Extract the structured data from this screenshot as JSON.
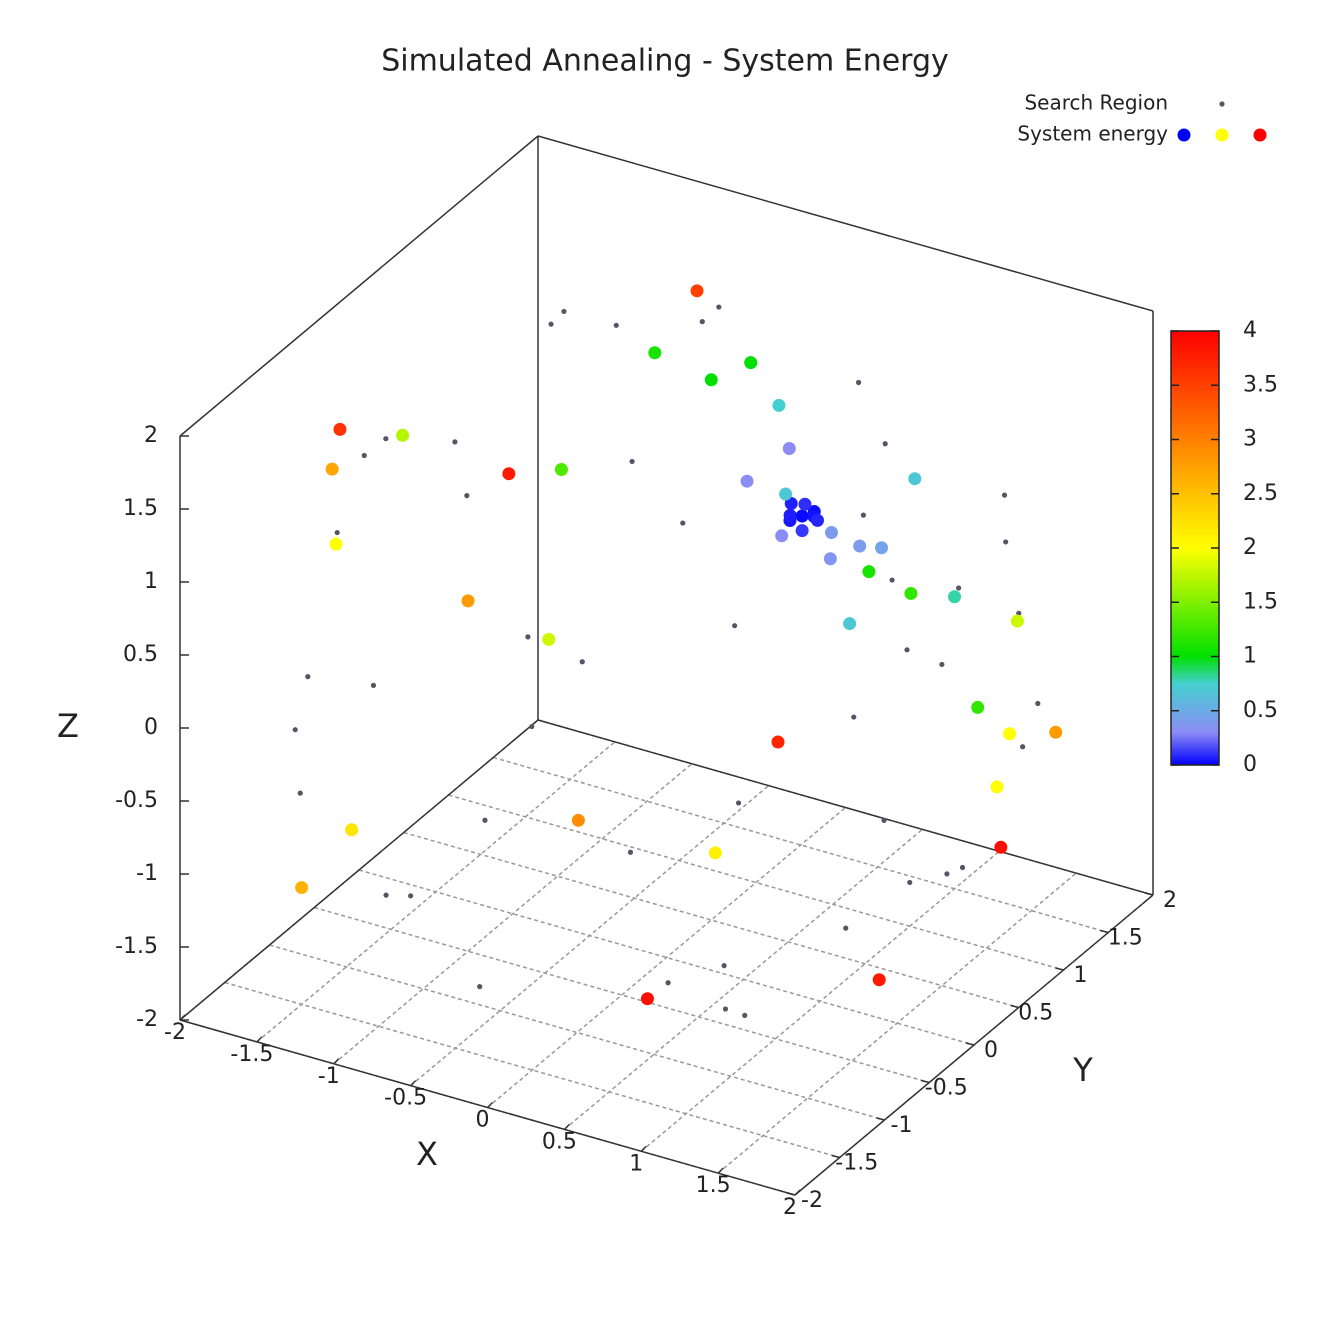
{
  "chart_data": {
    "type": "scatter3d",
    "title": "Simulated Annealing - System Energy",
    "xlabel": "X",
    "ylabel": "Y",
    "zlabel": "Z",
    "xlim": [
      -2,
      2
    ],
    "ylim": [
      -2,
      2
    ],
    "zlim": [
      -2,
      2
    ],
    "xticks": [
      -2,
      -1.5,
      -1,
      -0.5,
      0,
      0.5,
      1,
      1.5,
      2
    ],
    "yticks": [
      -2,
      -1.5,
      -1,
      -0.5,
      0,
      0.5,
      1,
      1.5,
      2
    ],
    "zticks": [
      -2,
      -1.5,
      -1,
      -0.5,
      0,
      0.5,
      1,
      1.5,
      2
    ],
    "cblim": [
      0,
      4
    ],
    "cbticks": [
      0,
      0.5,
      1,
      1.5,
      2,
      2.5,
      3,
      3.5,
      4
    ],
    "palette": [
      {
        "value": 0,
        "color": "#0000ff"
      },
      {
        "value": 0.3,
        "color": "#8c8cf5"
      },
      {
        "value": 0.75,
        "color": "#44d0d0"
      },
      {
        "value": 1,
        "color": "#00e000"
      },
      {
        "value": 1.5,
        "color": "#80f000"
      },
      {
        "value": 2,
        "color": "#ffff00"
      },
      {
        "value": 2.5,
        "color": "#ffc000"
      },
      {
        "value": 3,
        "color": "#ff8000"
      },
      {
        "value": 3.5,
        "color": "#ff4000"
      },
      {
        "value": 4,
        "color": "#ff0000"
      }
    ],
    "grid": true,
    "legend": "top-right",
    "series": [
      {
        "name": "Search Region",
        "color": "#555566",
        "x": [
          2.0,
          1.5,
          -1.2,
          -2.0,
          0.2,
          0.5,
          -0.8,
          1.8,
          0.0,
          0.9,
          -0.9,
          0.3,
          -1.5,
          1.2,
          2.1,
          1.6,
          -1.6,
          -2.1,
          0.4,
          -0.5,
          1.0,
          0.2,
          0.8,
          -0.7,
          1.3,
          -1.3,
          0.6,
          -0.4,
          1.9,
          -1.9,
          1.1,
          -1.0,
          1.4,
          -1.6,
          0.1,
          2.2,
          -2.2,
          0.0,
          0.7,
          -1.1,
          1.7,
          -0.3,
          0.5,
          -1.8,
          1.0,
          -0.6,
          1.5,
          -1.4
        ],
        "y": [
          0.5,
          1.2,
          1.5,
          0.3,
          2.1,
          -1.8,
          -1.9,
          -1.0,
          0.4,
          0.6,
          0.4,
          -0.9,
          -0.8,
          -1.3,
          -0.3,
          1.4,
          1.2,
          -0.4,
          2.0,
          -2.0,
          -1.7,
          0.3,
          -0.5,
          0.8,
          0.9,
          -0.9,
          1.4,
          -1.4,
          0.0,
          0.9,
          1.9,
          1.9,
          -1.6,
          -1.4,
          -2.2,
          0.2,
          0.1,
          2.2,
          0.8,
          0.6,
          -0.4,
          1.1,
          -0.2,
          -1.0,
          1.0,
          -1.2,
          0.5,
          0.9
        ],
        "z": [
          0.7,
          1.0,
          1.2,
          0.8,
          0.5,
          1.1,
          0.6,
          0.7,
          2.15,
          1.9,
          1.95,
          1.95,
          1.4,
          1.3,
          -0.6,
          -0.5,
          -0.9,
          -0.5,
          -0.8,
          -0.7,
          -1.0,
          -2.15,
          -1.9,
          -1.9,
          -1.5,
          -1.5,
          -1.6,
          -1.6,
          1.1,
          0.5,
          0.2,
          -0.3,
          0.3,
          -0.2,
          0.1,
          0.0,
          0.2,
          -0.1,
          -2.0,
          1.7,
          1.3,
          1.8,
          -2.1,
          -0.9,
          -1.7,
          1.6,
          0.2,
          -1.3
        ]
      },
      {
        "name": "System energy",
        "x": [
          0.3,
          0.35,
          0.25,
          0.32,
          0.28,
          0.4,
          0.2,
          0.33,
          0.3,
          0.1,
          0.6,
          0.5,
          0.0,
          0.7,
          0.4,
          0.2,
          0.8,
          -0.2,
          0.9,
          1.0,
          0.6,
          0.0,
          -0.6,
          1.2,
          -0.5,
          0.6,
          -0.8,
          1.5,
          -1.6,
          1.7,
          -0.3,
          -1.8,
          1.8,
          0.9,
          -1.0,
          1.3,
          -2.0,
          -1.0,
          0.3,
          -1.5,
          1.6,
          -1.6,
          -1.2,
          0.9,
          -0.5,
          2.0,
          1.5,
          0.4
        ],
        "y": [
          1.0,
          1.05,
          0.95,
          1.1,
          0.9,
          1.0,
          1.05,
          0.98,
          1.0,
          1.2,
          0.8,
          1.3,
          0.9,
          1.2,
          0.6,
          1.5,
          1.4,
          1.6,
          0.5,
          1.5,
          0.3,
          0.5,
          0.9,
          0.2,
          1.8,
          1.7,
          0.2,
          0.9,
          -0.2,
          1.0,
          -0.8,
          -0.6,
          0.6,
          -1.0,
          -1.8,
          1.6,
          -0.3,
          -0.5,
          -1.5,
          -1.5,
          1.6,
          -0.9,
          0.3,
          -0.3,
          1.2,
          0.3,
          -0.2,
          -0.9
        ],
        "z": [
          0.6,
          0.62,
          0.58,
          0.55,
          0.65,
          0.6,
          0.63,
          0.7,
          0.5,
          0.9,
          0.5,
          0.3,
          0.8,
          0.4,
          0.7,
          0.2,
          0.8,
          0.9,
          0.3,
          0.0,
          1.2,
          1.7,
          1.5,
          0.9,
          1.0,
          -0.2,
          1.0,
          -0.3,
          1.2,
          0.3,
          0.5,
          0.6,
          -0.6,
          -0.5,
          -0.5,
          -0.9,
          0.9,
          0.4,
          -0.2,
          -1.2,
          -0.8,
          1.6,
          0.8,
          -0.1,
          1.8,
          -0.8,
          -1.6,
          -1.7
        ],
        "energy": [
          0.02,
          0.03,
          0.05,
          0.04,
          0.06,
          0.08,
          0.07,
          0.1,
          0.12,
          0.3,
          0.35,
          0.4,
          0.3,
          0.45,
          0.3,
          0.4,
          0.7,
          0.75,
          0.7,
          0.8,
          0.7,
          1.0,
          1.1,
          1.1,
          1.0,
          1.2,
          1.3,
          1.2,
          1.7,
          1.8,
          1.8,
          2.0,
          2.0,
          2.1,
          2.2,
          2.0,
          2.7,
          2.8,
          2.9,
          2.6,
          2.8,
          3.6,
          3.8,
          3.7,
          3.5,
          3.9,
          3.8,
          3.9
        ]
      }
    ]
  }
}
